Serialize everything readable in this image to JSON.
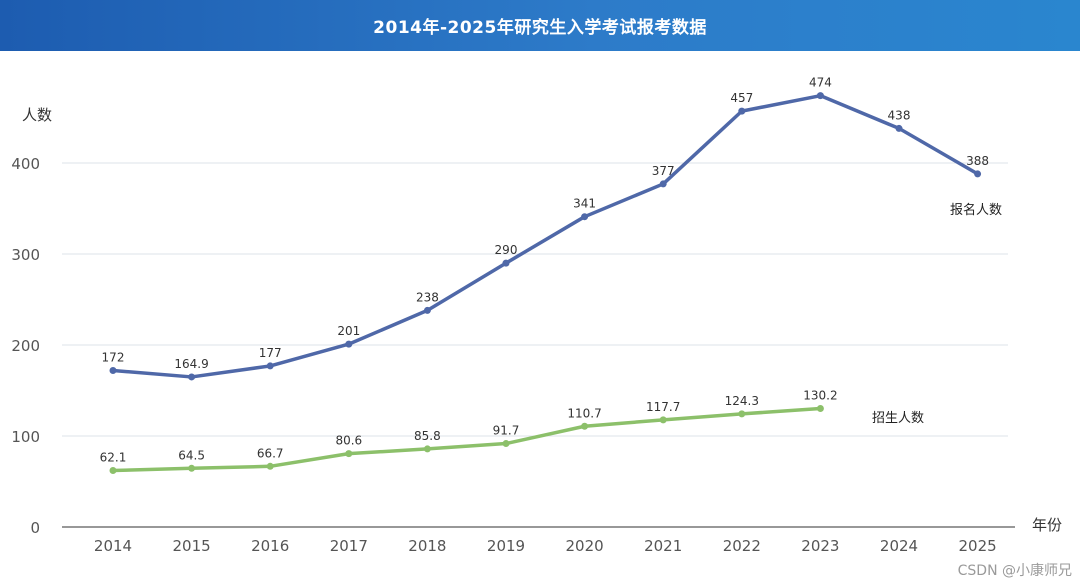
{
  "header": {
    "title": "2014年-2025年研究生入学考试报考数据"
  },
  "watermark": "CSDN @小康师兄",
  "chart_data": {
    "type": "line",
    "title": "2014年-2025年研究生入学考试报考数据",
    "xlabel": "年份",
    "ylabel": "人数",
    "ylim": [
      0,
      500
    ],
    "yticks": [
      0,
      100,
      200,
      300,
      400
    ],
    "grid": true,
    "categories": [
      "2014",
      "2015",
      "2016",
      "2017",
      "2018",
      "2019",
      "2020",
      "2021",
      "2022",
      "2023",
      "2024",
      "2025"
    ],
    "series": [
      {
        "name": "报名人数",
        "color": "#4f68a8",
        "values": [
          172,
          164.9,
          177,
          201,
          238,
          290,
          341,
          377,
          457,
          474,
          438,
          388
        ],
        "labels": [
          "172",
          "164.9",
          "177",
          "201",
          "238",
          "290",
          "341",
          "377",
          "457",
          "474",
          "438",
          "388"
        ]
      },
      {
        "name": "招生人数",
        "color": "#8cc06a",
        "values": [
          62.1,
          64.5,
          66.7,
          80.6,
          85.8,
          91.7,
          110.7,
          117.7,
          124.3,
          130.2,
          null,
          null
        ],
        "labels": [
          "62.1",
          "64.5",
          "66.7",
          "80.6",
          "85.8",
          "91.7",
          "110.7",
          "117.7",
          "124.3",
          "130.2",
          null,
          null
        ]
      }
    ]
  }
}
